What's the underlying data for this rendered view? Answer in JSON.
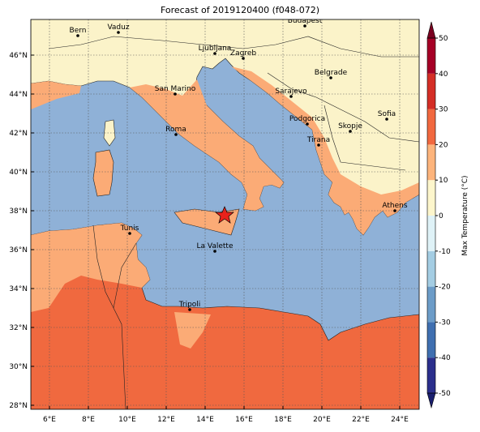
{
  "title": "Forecast of 2019120400 (f048-072)",
  "map": {
    "lon_labels": [
      "6°E",
      "8°E",
      "10°E",
      "12°E",
      "14°E",
      "16°E",
      "18°E",
      "20°E",
      "22°E",
      "24°E"
    ],
    "lat_labels": [
      "28°N",
      "30°N",
      "32°N",
      "34°N",
      "36°N",
      "38°N",
      "40°N",
      "42°N",
      "44°N",
      "46°N"
    ],
    "cities": [
      "Bern",
      "Vaduz",
      "Budapest",
      "Ljubljana",
      "Zagreb",
      "Belgrade",
      "San Marino",
      "Sarajevo",
      "Sofia",
      "Podgorica",
      "Skopje",
      "Roma",
      "Tirana",
      "Athens",
      "Tunis",
      "La Valette",
      "Tripoli"
    ]
  },
  "colorbar": {
    "label": "Max Temperature (°C)",
    "range": [
      -50,
      50
    ],
    "ticks": [
      -50,
      -40,
      -30,
      -20,
      -10,
      0,
      10,
      20,
      30,
      40,
      50
    ],
    "colors": [
      "#2b2f8c",
      "#3f6fb0",
      "#6c9cc8",
      "#a4cde3",
      "#dff2f7",
      "#fdf6cc",
      "#fdb47c",
      "#f1683f",
      "#d42e26",
      "#a50026"
    ],
    "under_color": "#1a1f6e",
    "over_color": "#7a0020"
  }
}
